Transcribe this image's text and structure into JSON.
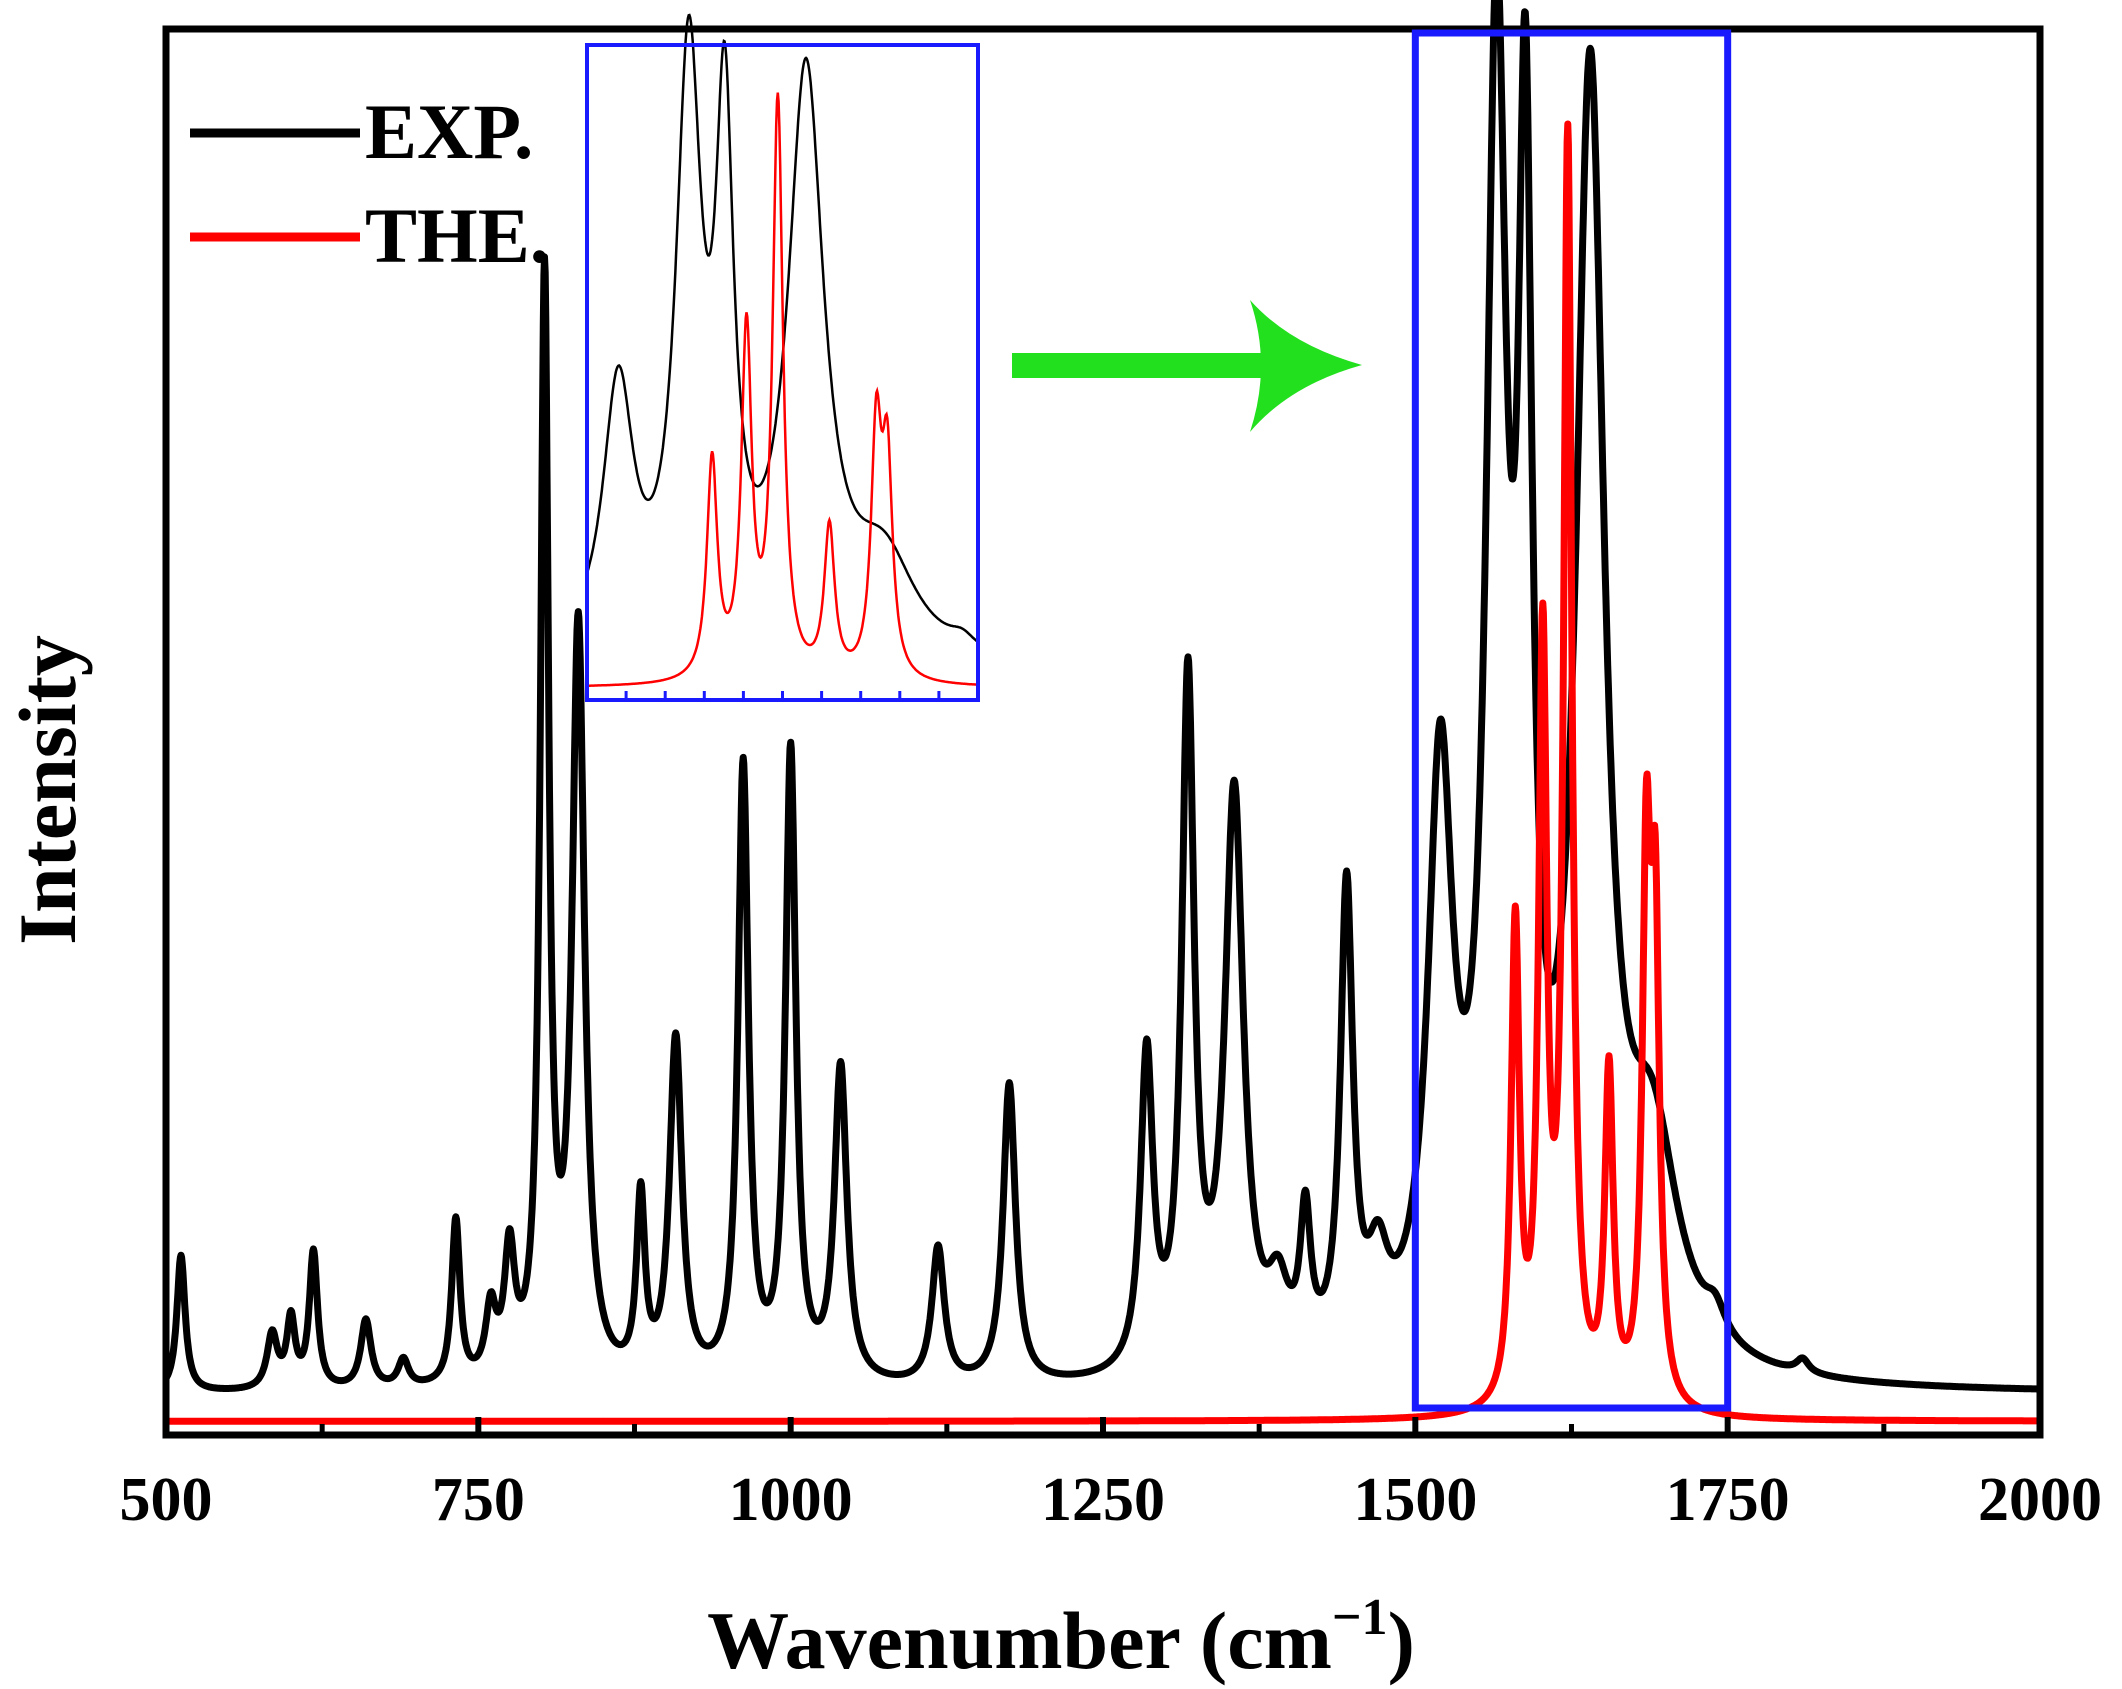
{
  "chart_data": {
    "type": "line",
    "title": "",
    "xlabel": "Wavenumber (cm",
    "xlabel_sup": "−1",
    "xlabel_close": ")",
    "ylabel": "Intensity",
    "xlim": [
      500,
      2000
    ],
    "ylim": [
      0,
      1.03
    ],
    "x_ticks": [
      500,
      750,
      1000,
      1250,
      1500,
      1750,
      2000
    ],
    "x_tick_labels": [
      "500",
      "750",
      "1000",
      "1250",
      "1500",
      "1750",
      "2000"
    ],
    "grid": false,
    "legend_position": "top-left",
    "highlight_region": {
      "x_range": [
        1500,
        1750
      ],
      "color": "#1a1aff"
    },
    "arrow_color": "#22e01e",
    "series": [
      {
        "name": "EXP.",
        "color": "#000000",
        "baseline": 0.03,
        "peaks": [
          [
            512,
            0.1,
            4
          ],
          [
            585,
            0.04,
            5
          ],
          [
            600,
            0.05,
            4
          ],
          [
            618,
            0.1,
            4
          ],
          [
            660,
            0.05,
            5
          ],
          [
            690,
            0.02,
            5
          ],
          [
            732,
            0.12,
            4
          ],
          [
            760,
            0.05,
            5
          ],
          [
            775,
            0.09,
            5
          ],
          [
            803,
            0.8,
            4
          ],
          [
            830,
            0.55,
            6
          ],
          [
            880,
            0.13,
            4
          ],
          [
            908,
            0.25,
            6
          ],
          [
            962,
            0.45,
            5
          ],
          [
            1000,
            0.46,
            5
          ],
          [
            1040,
            0.23,
            6
          ],
          [
            1118,
            0.1,
            6
          ],
          [
            1175,
            0.22,
            6
          ],
          [
            1285,
            0.23,
            6
          ],
          [
            1318,
            0.5,
            6
          ],
          [
            1355,
            0.42,
            9
          ],
          [
            1390,
            0.05,
            10
          ],
          [
            1412,
            0.1,
            5
          ],
          [
            1445,
            0.34,
            6
          ],
          [
            1470,
            0.06,
            10
          ],
          [
            1520,
            0.42,
            12
          ],
          [
            1565,
            0.92,
            10
          ],
          [
            1588,
            0.78,
            7
          ],
          [
            1640,
            0.92,
            14
          ],
          [
            1690,
            0.15,
            25
          ],
          [
            1740,
            0.02,
            10
          ],
          [
            1810,
            0.01,
            6
          ]
        ]
      },
      {
        "name": "THE.",
        "color": "#ff0000",
        "baseline": 0.01,
        "peaks": [
          [
            1580,
            0.35,
            4
          ],
          [
            1602,
            0.55,
            4
          ],
          [
            1622,
            0.92,
            4
          ],
          [
            1655,
            0.24,
            4
          ],
          [
            1685,
            0.38,
            4
          ],
          [
            1692,
            0.33,
            4
          ]
        ]
      }
    ],
    "inset": {
      "xlim": [
        1500,
        1750
      ],
      "border_color": "#1a1aff",
      "ticks": [
        1525,
        1550,
        1575,
        1600,
        1625,
        1650,
        1675,
        1700,
        1725
      ]
    }
  }
}
